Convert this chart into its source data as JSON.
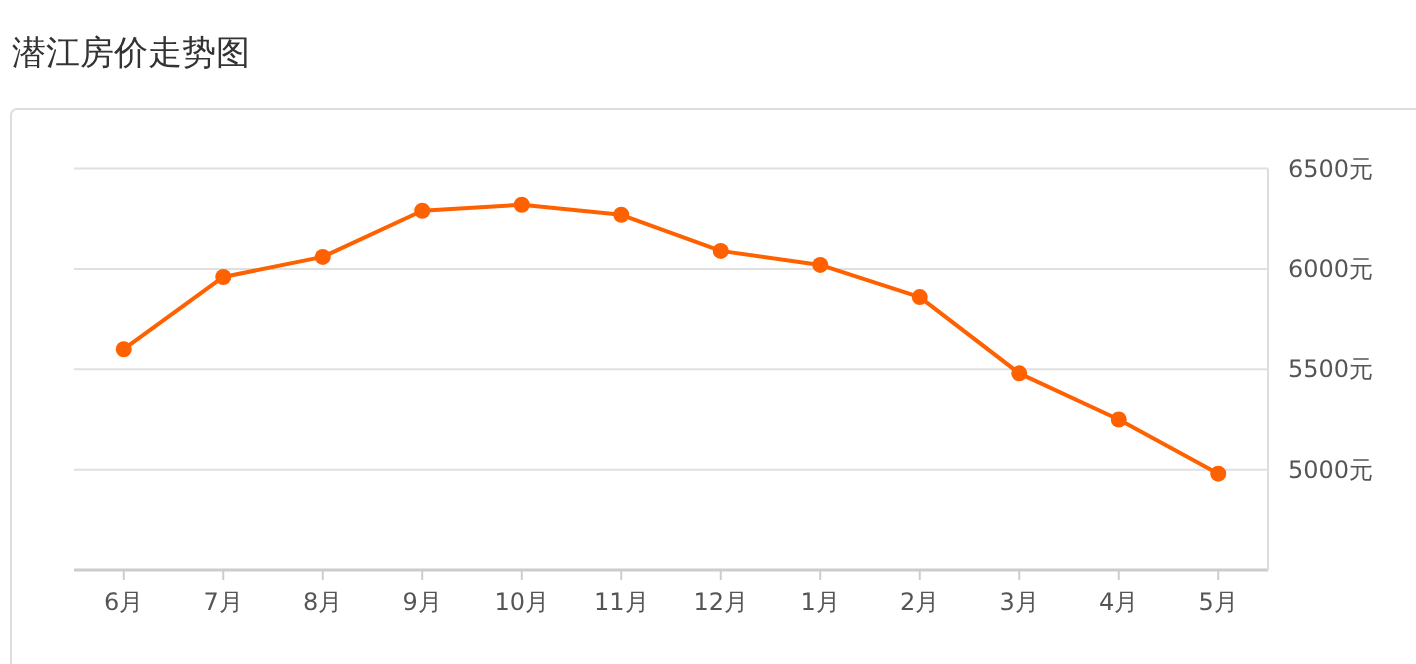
{
  "chart_data": {
    "type": "line",
    "title": "潜江房价走势图",
    "categories": [
      "6月",
      "7月",
      "8月",
      "9月",
      "10月",
      "11月",
      "12月",
      "1月",
      "2月",
      "3月",
      "4月",
      "5月"
    ],
    "series": [
      {
        "color": "#ff6100",
        "values": [
          5600,
          5960,
          6060,
          6290,
          6320,
          6270,
          6090,
          6020,
          5860,
          5480,
          5250,
          4980
        ]
      }
    ],
    "ylim": [
      4500,
      6500
    ],
    "yticks": [
      {
        "value": 5000,
        "label": "5000元"
      },
      {
        "value": 5500,
        "label": "5500元"
      },
      {
        "value": 6000,
        "label": "6000元"
      },
      {
        "value": 6500,
        "label": "6500元"
      }
    ],
    "grid": "y",
    "marker": "circle",
    "line_style": "solid"
  }
}
